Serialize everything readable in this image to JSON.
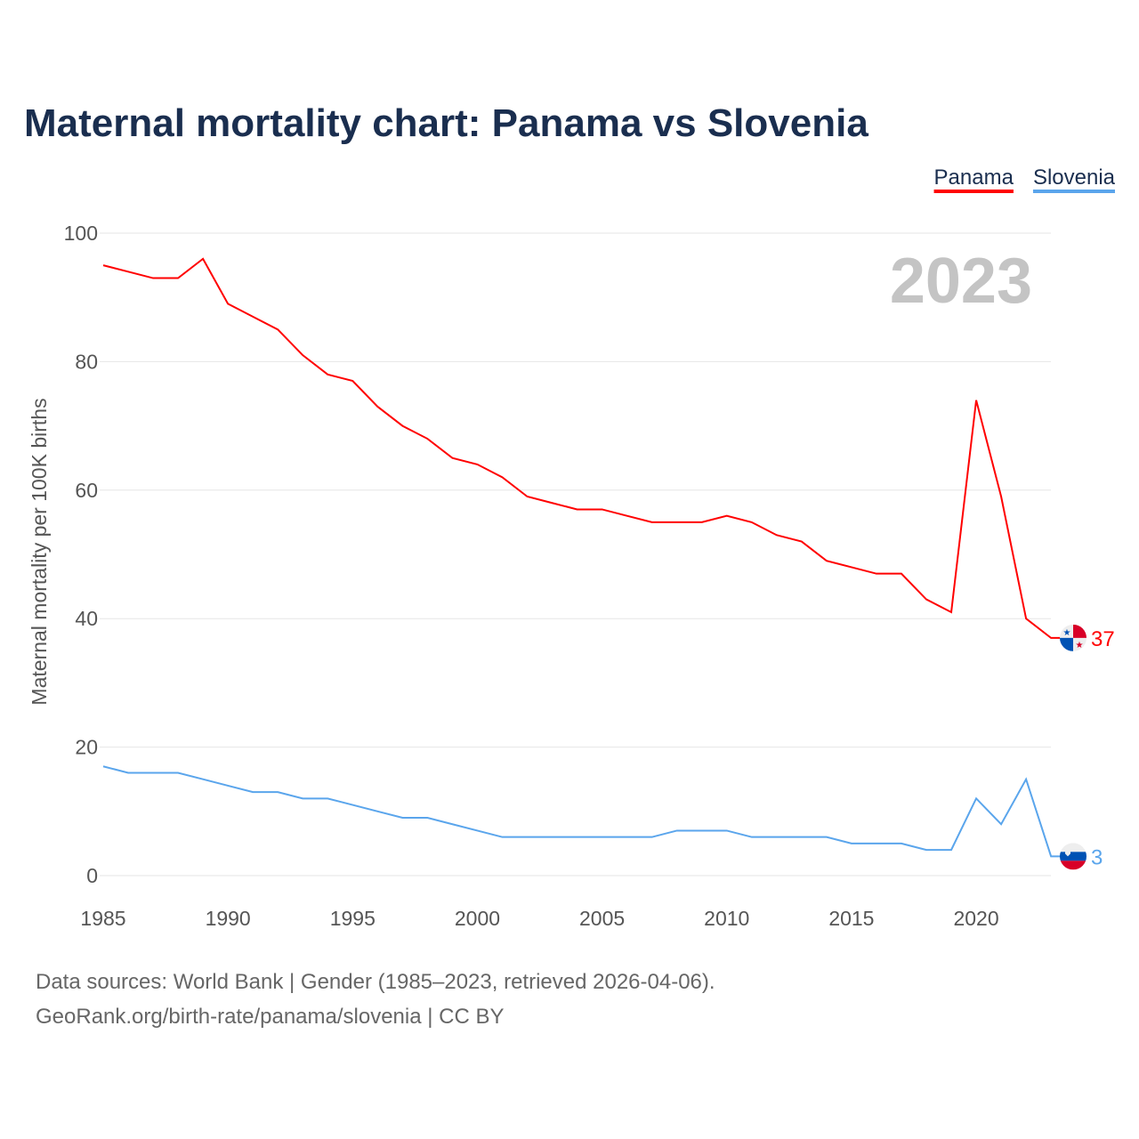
{
  "chart_data": {
    "type": "line",
    "title": "Maternal mortality chart: Panama vs Slovenia",
    "ylabel": "Maternal mortality per 100K births",
    "xlabel": "",
    "ylim": [
      0,
      100
    ],
    "xlim": [
      1985,
      2023
    ],
    "yticks": [
      0,
      20,
      40,
      60,
      80,
      100
    ],
    "xticks": [
      1985,
      1990,
      1995,
      2000,
      2005,
      2010,
      2015,
      2020
    ],
    "grid": true,
    "legend_placement": "top-right",
    "year_label": "2023",
    "x": [
      1985,
      1986,
      1987,
      1988,
      1989,
      1990,
      1991,
      1992,
      1993,
      1994,
      1995,
      1996,
      1997,
      1998,
      1999,
      2000,
      2001,
      2002,
      2003,
      2004,
      2005,
      2006,
      2007,
      2008,
      2009,
      2010,
      2011,
      2012,
      2013,
      2014,
      2015,
      2016,
      2017,
      2018,
      2019,
      2020,
      2021,
      2022,
      2023
    ],
    "series": [
      {
        "name": "Panama",
        "color": "#ff0000",
        "end_label": "37",
        "values": [
          95,
          94,
          93,
          93,
          96,
          89,
          87,
          85,
          81,
          78,
          77,
          73,
          70,
          68,
          65,
          64,
          62,
          59,
          58,
          57,
          57,
          56,
          55,
          55,
          55,
          56,
          55,
          53,
          52,
          49,
          48,
          47,
          47,
          43,
          41,
          74,
          59,
          40,
          37
        ]
      },
      {
        "name": "Slovenia",
        "color": "#5aa5ec",
        "end_label": "3",
        "values": [
          17,
          16,
          16,
          16,
          15,
          14,
          13,
          13,
          12,
          12,
          11,
          10,
          9,
          9,
          8,
          7,
          6,
          6,
          6,
          6,
          6,
          6,
          6,
          7,
          7,
          7,
          6,
          6,
          6,
          6,
          5,
          5,
          5,
          4,
          4,
          12,
          8,
          15,
          3
        ]
      }
    ]
  },
  "footer": {
    "line1": "Data sources: World Bank | Gender (1985–2023, retrieved 2026-04-06).",
    "line2": "GeoRank.org/birth-rate/panama/slovenia | CC BY"
  }
}
